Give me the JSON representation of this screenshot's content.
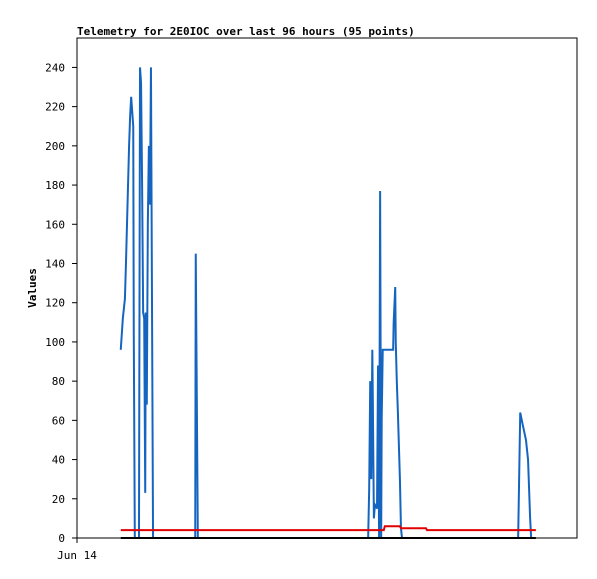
{
  "chart_data": {
    "type": "line",
    "title": "Telemetry for 2E0IOC over last 96 hours (95 points)",
    "y_label": "Values",
    "xlim": [
      0,
      96
    ],
    "xticks": [
      {
        "value": 0,
        "label": "Jun 14"
      }
    ],
    "ylim": [
      0,
      255
    ],
    "yticks": [
      0,
      20,
      40,
      60,
      80,
      100,
      120,
      140,
      160,
      180,
      200,
      220,
      240
    ],
    "grid": false,
    "series": [
      {
        "color": "#1565c0",
        "x": [
          8.4,
          8.8,
          9.2,
          9.4,
          9.6,
          9.8,
          10.0,
          10.2,
          10.4,
          10.8,
          10.9,
          11.1,
          11.9,
          12.1,
          12.3,
          12.5,
          12.7,
          12.9,
          13.1,
          13.2,
          13.4,
          13.6,
          13.8,
          14.0,
          14.2,
          14.4,
          14.6,
          22.7,
          22.8,
          23.0,
          23.2,
          55.9,
          56.1,
          56.3,
          56.5,
          56.7,
          56.8,
          57.0,
          57.2,
          57.6,
          57.8,
          58.0,
          58.2,
          58.4,
          58.5,
          58.7,
          60.7,
          60.8,
          61.1,
          61.2,
          61.4,
          61.6,
          62.0,
          62.2,
          62.4,
          84.7,
          85.1,
          85.4,
          85.8,
          86.2,
          86.6,
          87.0,
          87.2
        ],
        "values": [
          96,
          112,
          122,
          140,
          160,
          180,
          200,
          215,
          225,
          210,
          105,
          0,
          0,
          240,
          232,
          180,
          115,
          112,
          23,
          115,
          68,
          160,
          200,
          170,
          240,
          120,
          0,
          0,
          145,
          72,
          0,
          0,
          25,
          80,
          30,
          96,
          70,
          10,
          17,
          15,
          88,
          0,
          177,
          0,
          60,
          96,
          96,
          110,
          128,
          100,
          80,
          65,
          30,
          5,
          0,
          0,
          64,
          60,
          55,
          50,
          40,
          10,
          0
        ]
      },
      {
        "color": "#e00000",
        "x": [
          8.4,
          58.9,
          59.1,
          62.0,
          62.2,
          67.0,
          67.2,
          88.1
        ],
        "values": [
          4,
          4,
          6,
          6,
          5,
          5,
          4,
          4
        ]
      },
      {
        "color": "#000000",
        "x": [
          8.4,
          88.1
        ],
        "values": [
          0,
          0
        ]
      }
    ]
  }
}
